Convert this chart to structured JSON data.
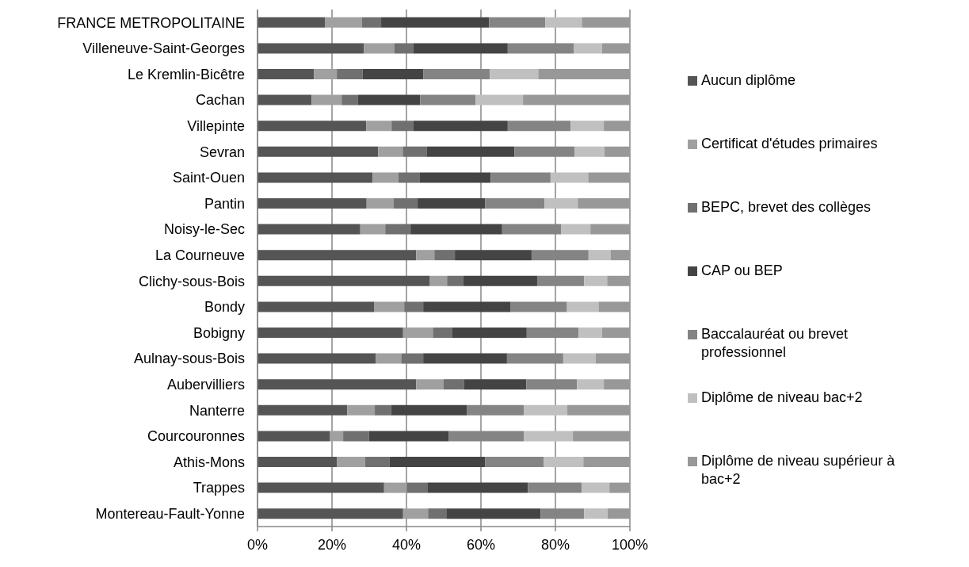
{
  "chart_data": {
    "type": "bar",
    "orientation": "horizontal",
    "stacked": true,
    "categories": [
      "FRANCE METROPOLITAINE",
      "Villeneuve-Saint-Georges",
      "Le Kremlin-Bicêtre",
      "Cachan",
      "Villepinte",
      "Sevran",
      "Saint-Ouen",
      "Pantin",
      "Noisy-le-Sec",
      "La Courneuve",
      "Clichy-sous-Bois",
      "Bondy",
      "Bobigny",
      "Aulnay-sous-Bois",
      "Aubervilliers",
      "Nanterre",
      "Courcouronnes",
      "Athis-Mons",
      "Trappes",
      "Montereau-Fault-Yonne"
    ],
    "series": [
      {
        "name": "Aucun diplôme",
        "color": "#555555",
        "values": [
          18.2,
          28.6,
          15.2,
          14.5,
          29.2,
          32.4,
          30.9,
          29.3,
          27.6,
          42.6,
          46.3,
          31.4,
          39.1,
          31.8,
          42.6,
          24.1,
          19.5,
          21.3,
          34.0,
          39.1
        ]
      },
      {
        "name": "Certificat d'études primaires",
        "color": "#a0a0a0",
        "values": [
          9.8,
          8.1,
          6.1,
          8.1,
          6.8,
          6.6,
          6.9,
          7.3,
          6.7,
          4.9,
          4.6,
          8.0,
          8.0,
          6.8,
          7.3,
          7.4,
          3.5,
          7.6,
          6.1,
          6.7
        ]
      },
      {
        "name": "BEPC, brevet des collèges",
        "color": "#707070",
        "values": [
          5.2,
          5.1,
          6.9,
          4.4,
          5.9,
          6.4,
          5.8,
          6.4,
          6.8,
          5.5,
          4.4,
          5.1,
          5.1,
          5.9,
          5.5,
          4.4,
          6.9,
          6.6,
          5.5,
          4.9
        ]
      },
      {
        "name": "CAP ou BEP",
        "color": "#444444",
        "values": [
          29.0,
          25.4,
          16.3,
          16.7,
          25.3,
          23.6,
          19.0,
          18.1,
          24.6,
          20.6,
          19.8,
          23.5,
          20.1,
          22.5,
          16.8,
          20.4,
          21.5,
          25.6,
          27.0,
          25.3
        ]
      },
      {
        "name": "Baccalauréat ou brevet professionnel",
        "color": "#848484",
        "values": [
          15.1,
          17.8,
          17.9,
          14.9,
          16.9,
          16.2,
          16.1,
          16.0,
          15.9,
          15.3,
          12.6,
          15.1,
          13.9,
          15.1,
          13.6,
          15.2,
          20.1,
          15.8,
          14.5,
          11.7
        ]
      },
      {
        "name": "Diplôme de niveau bac+2",
        "color": "#c0c0c0",
        "values": [
          9.8,
          7.5,
          13.0,
          12.7,
          8.9,
          8.0,
          10.1,
          8.9,
          7.8,
          5.9,
          6.2,
          8.5,
          6.3,
          8.7,
          7.2,
          11.7,
          13.2,
          10.6,
          7.4,
          6.3
        ]
      },
      {
        "name": "Diplôme de niveau supérieur à bac+2",
        "color": "#989898",
        "values": [
          12.9,
          7.5,
          24.6,
          28.7,
          7.0,
          6.8,
          11.2,
          14.0,
          10.6,
          5.2,
          6.1,
          8.4,
          7.5,
          9.2,
          7.0,
          16.8,
          15.3,
          12.5,
          5.5,
          6.0
        ]
      }
    ],
    "xlim": [
      0,
      100
    ],
    "xticks": [
      {
        "value": 0,
        "label": "0%"
      },
      {
        "value": 20,
        "label": "20%"
      },
      {
        "value": 40,
        "label": "40%"
      },
      {
        "value": 60,
        "label": "60%"
      },
      {
        "value": 80,
        "label": "80%"
      },
      {
        "value": 100,
        "label": "100%"
      }
    ],
    "grid": "x",
    "legend": "right"
  }
}
